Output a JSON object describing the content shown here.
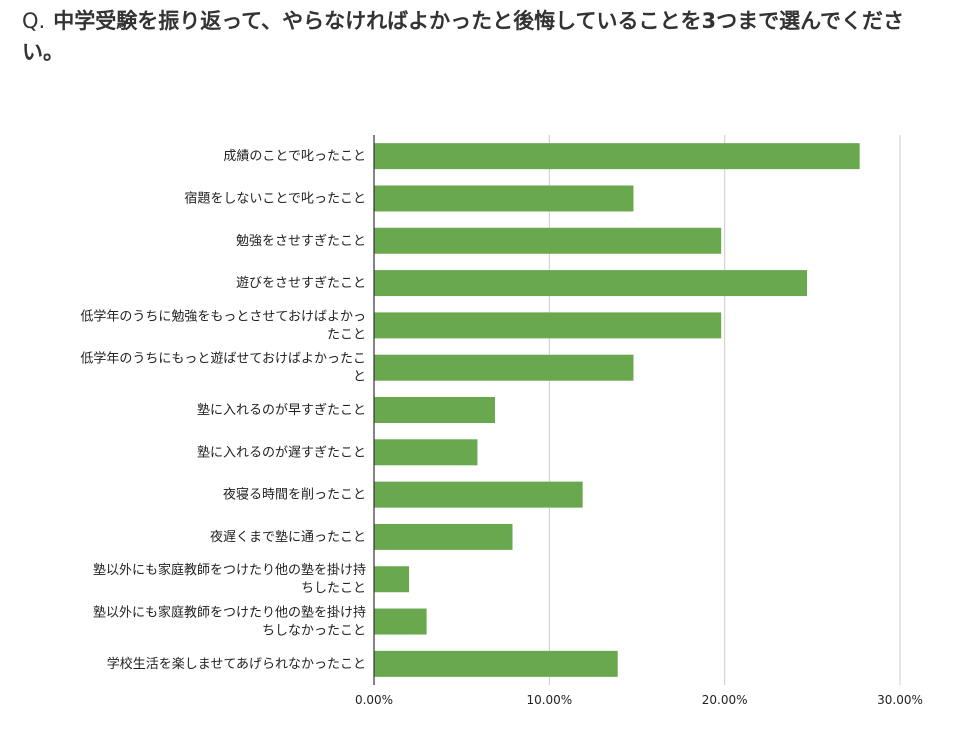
{
  "question": {
    "prefix": "Q.",
    "text": "中学受験を振り返って、やらなければよかったと後悔していることを3つまで選んでください。"
  },
  "chart_data": {
    "type": "bar",
    "orientation": "horizontal",
    "categories": [
      "成績のことで叱ったこと",
      "宿題をしないことで叱ったこと",
      "勉強をさせすぎたこと",
      "遊びをさせすぎたこと",
      "低学年のうちに勉強をもっとさせておけばよかったこと",
      "低学年のうちにもっと遊ばせておけばよかったこと",
      "塾に入れるのが早すぎたこと",
      "塾に入れるのが遅すぎたこと",
      "夜寝る時間を削ったこと",
      "夜遅くまで塾に通ったこと",
      "塾以外にも家庭教師をつけたり他の塾を掛け持ちしたこと",
      "塾以外にも家庭教師をつけたり他の塾を掛け持ちしなかったこと",
      "学校生活を楽しませてあげられなかったこと"
    ],
    "category_lines": [
      [
        "成績のことで叱ったこと"
      ],
      [
        "宿題をしないことで叱ったこと"
      ],
      [
        "勉強をさせすぎたこと"
      ],
      [
        "遊びをさせすぎたこと"
      ],
      [
        "低学年のうちに勉強をもっとさせておけばよかっ",
        "たこと"
      ],
      [
        "低学年のうちにもっと遊ばせておけばよかったこ",
        "と"
      ],
      [
        "塾に入れるのが早すぎたこと"
      ],
      [
        "塾に入れるのが遅すぎたこと"
      ],
      [
        "夜寝る時間を削ったこと"
      ],
      [
        "夜遅くまで塾に通ったこと"
      ],
      [
        "塾以外にも家庭教師をつけたり他の塾を掛け持",
        "ちしたこと"
      ],
      [
        "塾以外にも家庭教師をつけたり他の塾を掛け持",
        "ちしなかったこと"
      ],
      [
        "学校生活を楽しませてあげられなかったこと"
      ]
    ],
    "values": [
      27.7,
      14.8,
      19.8,
      24.7,
      19.8,
      14.8,
      6.9,
      5.9,
      11.9,
      7.9,
      2.0,
      3.0,
      13.9
    ],
    "unit": "%",
    "xlim": [
      0,
      30
    ],
    "x_ticks": [
      0,
      10,
      20,
      30
    ],
    "x_tick_labels": [
      "0.00%",
      "10.00%",
      "20.00%",
      "30.00%"
    ],
    "bar_color": "#6aa84f",
    "grid": true,
    "legend": "none",
    "xlabel": "",
    "ylabel": ""
  }
}
